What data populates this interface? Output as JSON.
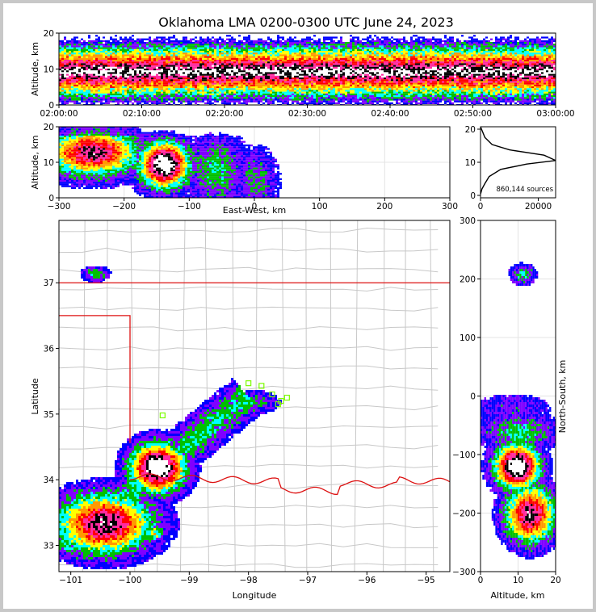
{
  "title": "Oklahoma LMA 0200-0300 UTC June 24, 2023",
  "colors": {
    "background": "#c8c8c8",
    "state_border": "#dd1111",
    "county_border": "#c8c8c8",
    "station_marker": "#7cfc00",
    "density_ramp": [
      "#0000ff",
      "#7f00ff",
      "#00c000",
      "#00ffff",
      "#ffff00",
      "#ff9900",
      "#ff0000",
      "#ff2aa0",
      "#000000",
      "#ffffff"
    ]
  },
  "chart_data": [
    {
      "id": "time-height",
      "type": "heatmap",
      "ylabel": "Altitude, km",
      "ylim": [
        0,
        20
      ],
      "yticks": [
        "0",
        "10",
        "20"
      ],
      "xticks": [
        "02:00:00",
        "02:10:00",
        "02:20:00",
        "02:30:00",
        "02:40:00",
        "02:50:00",
        "03:00:00"
      ],
      "x_range": [
        "02:00:00",
        "03:00:00"
      ],
      "core_altitude_km": 10
    },
    {
      "id": "east-west-altitude",
      "type": "heatmap",
      "xlabel": "East-West, km",
      "ylabel": "Altitude, km",
      "xlim": [
        -300,
        300
      ],
      "ylim": [
        0,
        20
      ],
      "xticks": [
        "−300",
        "−200",
        "−100",
        "0",
        "100",
        "200",
        "300"
      ],
      "yticks": [
        "0",
        "10",
        "20"
      ],
      "grid": true
    },
    {
      "id": "altitude-histogram",
      "type": "line",
      "xlim": [
        0,
        26000
      ],
      "ylim": [
        0,
        20
      ],
      "xticks": [
        "0",
        "20000"
      ],
      "yticks": [
        "0",
        "10",
        "20"
      ],
      "annotation": "860,144 sources",
      "x": [
        0,
        500,
        1500,
        3000,
        7000,
        16000,
        26000,
        22000,
        10000,
        4000,
        1500,
        500,
        0
      ],
      "y": [
        1,
        2.5,
        4,
        6,
        8,
        9.5,
        10.5,
        12,
        13.5,
        15,
        17,
        19,
        20
      ]
    },
    {
      "id": "plan-view",
      "type": "heatmap",
      "xlabel": "Longitude",
      "ylabel": "Latitude",
      "xlim": [
        -101.2,
        -94.6
      ],
      "ylim": [
        32.6,
        37.95
      ],
      "xticks": [
        "−101",
        "−100",
        "−99",
        "−98",
        "−97",
        "−96",
        "−95"
      ],
      "yticks": [
        "33",
        "34",
        "35",
        "36",
        "37"
      ],
      "stations": [
        [
          -98.0,
          35.47
        ],
        [
          -97.78,
          35.43
        ],
        [
          -97.6,
          35.3
        ],
        [
          -97.35,
          35.25
        ],
        [
          -97.45,
          35.2
        ],
        [
          -97.5,
          35.15
        ],
        [
          -99.45,
          34.98
        ]
      ]
    },
    {
      "id": "north-south-altitude",
      "type": "heatmap",
      "xlabel": "Altitude, km",
      "ylabel": "North-South, km",
      "xlim": [
        0,
        20
      ],
      "ylim": [
        -300,
        300
      ],
      "xticks": [
        "0",
        "10",
        "20"
      ],
      "yticks": [
        "−300",
        "−200",
        "−100",
        "0",
        "100",
        "200",
        "300"
      ],
      "grid": true
    }
  ]
}
